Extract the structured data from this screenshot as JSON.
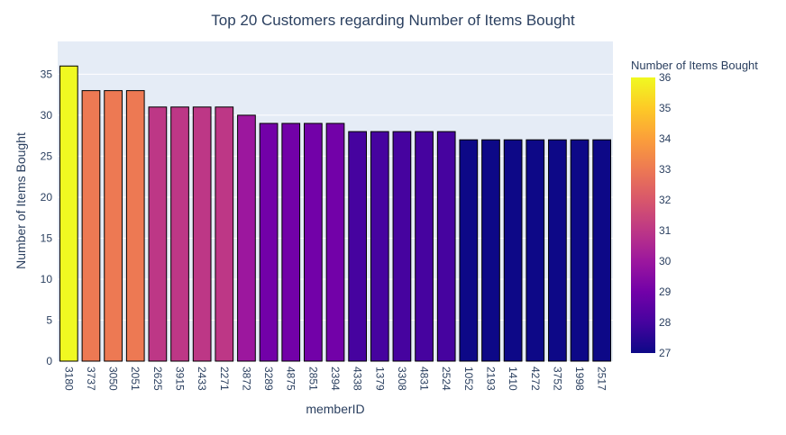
{
  "chart_data": {
    "type": "bar",
    "title": "Top 20 Customers regarding Number of Items Bought",
    "xlabel": "memberID",
    "ylabel": "Number of Items Bought",
    "categories": [
      "3180",
      "3737",
      "3050",
      "2051",
      "2625",
      "3915",
      "2433",
      "2271",
      "3872",
      "3289",
      "4875",
      "2851",
      "2394",
      "4338",
      "1379",
      "3308",
      "4831",
      "2524",
      "1052",
      "2193",
      "1410",
      "4272",
      "3752",
      "1998",
      "2517"
    ],
    "values": [
      36,
      33,
      33,
      33,
      31,
      31,
      31,
      31,
      30,
      29,
      29,
      29,
      29,
      28,
      28,
      28,
      28,
      28,
      27,
      27,
      27,
      27,
      27,
      27,
      27
    ],
    "ylim": [
      0,
      39
    ],
    "yticks": [
      0,
      5,
      10,
      15,
      20,
      25,
      30,
      35
    ],
    "grid": true,
    "colorbar": {
      "title": "Number of Items Bought",
      "range": [
        27,
        36
      ],
      "ticks": [
        27,
        28,
        29,
        30,
        31,
        32,
        33,
        34,
        35,
        36
      ],
      "colorscale": "plasma"
    },
    "colors": {
      "plot_bg": "#e5ecf6",
      "bar_outline": "#000000"
    }
  }
}
